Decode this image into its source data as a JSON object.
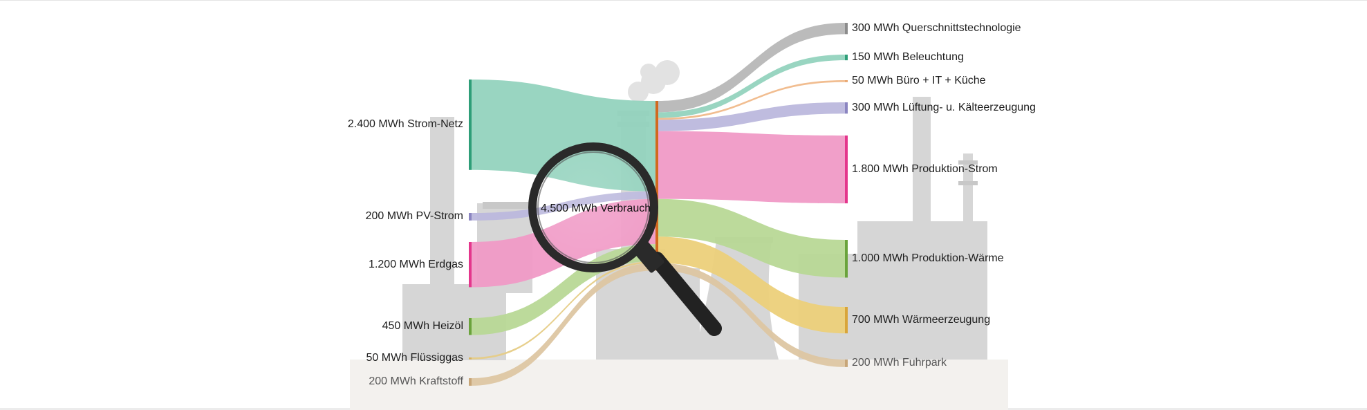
{
  "diagram": {
    "type": "sankey",
    "unit": "MWh",
    "center_node": {
      "label": "4.500 MWh Verbrauch",
      "value": 4500,
      "color": "#d2691e"
    },
    "sources": [
      {
        "id": "strom_netz",
        "label": "2.400 MWh Strom-Netz",
        "value": 2400,
        "color": "#2e9e78",
        "flow_color": "#94d3be"
      },
      {
        "id": "pv_strom",
        "label": "200 MWh PV-Strom",
        "value": 200,
        "color": "#8b85c1",
        "flow_color": "#bcb8dd"
      },
      {
        "id": "erdgas",
        "label": "1.200 MWh Erdgas",
        "value": 1200,
        "color": "#e4368c",
        "flow_color": "#f09ac6"
      },
      {
        "id": "heizoel",
        "label": "450 MWh Heizöl",
        "value": 450,
        "color": "#6aa33c",
        "flow_color": "#b8d896"
      },
      {
        "id": "fluessiggas",
        "label": "50 MWh Flüssiggas",
        "value": 50,
        "color": "#d9b45e",
        "flow_color": "#e6cc86"
      },
      {
        "id": "kraftstoff",
        "label": "200 MWh Kraftstoff",
        "value": 200,
        "color": "#c8a678",
        "flow_color": "#ddc6a2"
      }
    ],
    "targets": [
      {
        "id": "querschnitt",
        "label": "300 MWh Querschnittstechnologie",
        "value": 300,
        "color": "#8c8c8c",
        "flow_color": "#b7b7b7"
      },
      {
        "id": "beleuchtung",
        "label": "150 MWh Beleuchtung",
        "value": 150,
        "color": "#2e9e78",
        "flow_color": "#94d3be"
      },
      {
        "id": "buero",
        "label": "50 MWh Büro + IT + Küche",
        "value": 50,
        "color": "#e8a36a",
        "flow_color": "#f0b98a"
      },
      {
        "id": "lueftung",
        "label": "300 MWh Lüftung- u. Kälteerzeugung",
        "value": 300,
        "color": "#8b85c1",
        "flow_color": "#bcb8dd"
      },
      {
        "id": "prod_strom",
        "label": "1.800 MWh Produktion-Strom",
        "value": 1800,
        "color": "#e4368c",
        "flow_color": "#f09ac6"
      },
      {
        "id": "prod_waerme",
        "label": "1.000 MWh Produktion-Wärme",
        "value": 1000,
        "color": "#6aa33c",
        "flow_color": "#b8d896"
      },
      {
        "id": "waermeerz",
        "label": "700 MWh Wärmeerzeugung",
        "value": 700,
        "color": "#d9a53a",
        "flow_color": "#ecd07a"
      },
      {
        "id": "fuhrpark",
        "label": "200 MWh Fuhrpark",
        "value": 200,
        "color": "#c8a678",
        "flow_color": "#ddc6a2"
      }
    ],
    "icons": {
      "magnifier": "magnifying-glass-icon",
      "factory": "factory-silhouette-icon"
    }
  }
}
